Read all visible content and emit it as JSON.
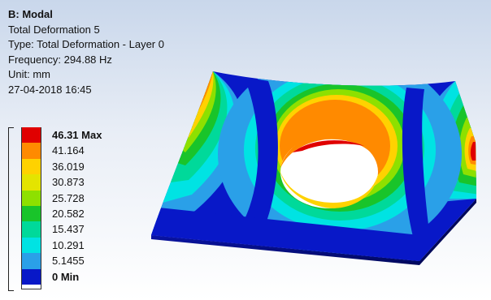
{
  "info": {
    "title": "B: Modal",
    "line1": "Total Deformation 5",
    "line2": "Type: Total Deformation - Layer 0",
    "line3": "Frequency: 294.88 Hz",
    "line4": "Unit: mm",
    "line5": "27-04-2018 16:45"
  },
  "legend": {
    "entries": [
      {
        "label": "46.31 Max",
        "color": "#e00000",
        "bold": true
      },
      {
        "label": "41.164",
        "color": "#ff8a00",
        "bold": false
      },
      {
        "label": "36.019",
        "color": "#ffd200",
        "bold": false
      },
      {
        "label": "30.873",
        "color": "#e4e400",
        "bold": false
      },
      {
        "label": "25.728",
        "color": "#8ee000",
        "bold": false
      },
      {
        "label": "20.582",
        "color": "#19c42a",
        "bold": false
      },
      {
        "label": "15.437",
        "color": "#00d99a",
        "bold": false
      },
      {
        "label": "10.291",
        "color": "#00e3e3",
        "bold": false
      },
      {
        "label": "5.1455",
        "color": "#2aa0e8",
        "bold": false
      },
      {
        "label": "0 Min",
        "color": "#0818c8",
        "bold": true
      }
    ],
    "bottom_swatch_color": "#ffffff"
  },
  "colors": {
    "max": "#e00000",
    "min": "#0818c8",
    "plate_edge": "#000a6e"
  }
}
